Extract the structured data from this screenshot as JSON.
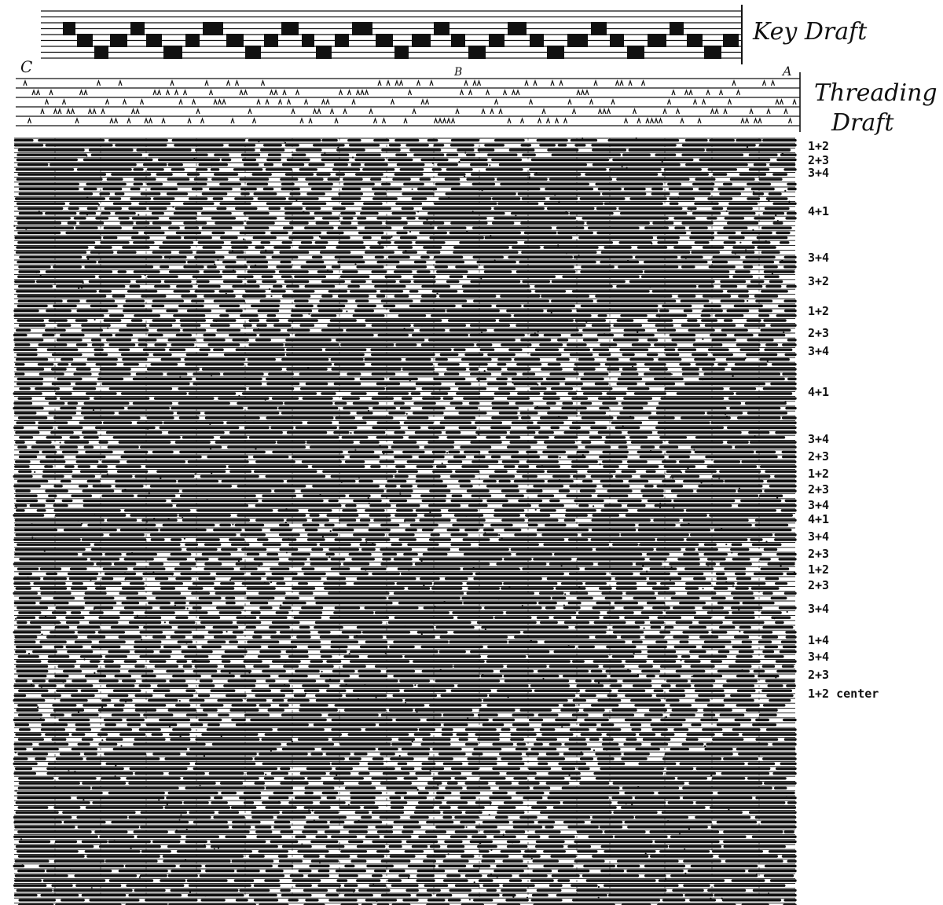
{
  "labels": {
    "key_draft": "Key Draft",
    "threading_draft_line1": "Threading",
    "threading_draft_line2": "Draft",
    "marker_c": "C",
    "marker_a": "A",
    "marker_center": "B"
  },
  "treadling_sequence": [
    "1+2",
    "2+3",
    "3+4",
    "4+1",
    "3+4",
    "3+2",
    "1+2",
    "2+3",
    "3+4",
    "4+1",
    "3+4",
    "2+3",
    "1+2",
    "2+3",
    "3+4",
    "4+1",
    "3+4",
    "2+3",
    "1+2",
    "2+3",
    "3+4",
    "1+4",
    "3+4",
    "2+3",
    "1+2 center"
  ],
  "colors": {
    "ink": "#111111",
    "paper": "#ffffff"
  }
}
